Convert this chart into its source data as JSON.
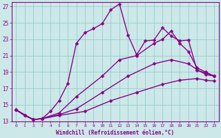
{
  "xlabel": "Windchill (Refroidissement éolien,°C)",
  "bg_color": "#cce8e8",
  "line_color": "#880088",
  "grid_color": "#99cccc",
  "xmin": -0.5,
  "xmax": 23.5,
  "ymin": 13,
  "ymax": 27.5,
  "yticks": [
    13,
    15,
    17,
    19,
    21,
    23,
    25,
    27
  ],
  "xticks": [
    0,
    1,
    2,
    3,
    4,
    5,
    6,
    7,
    8,
    9,
    10,
    11,
    12,
    13,
    14,
    15,
    16,
    17,
    18,
    19,
    20,
    21,
    22,
    23
  ],
  "series": [
    {
      "x": [
        0,
        1,
        2,
        3,
        4,
        5,
        6,
        7,
        8,
        9,
        10,
        11,
        12,
        13,
        14,
        15,
        16,
        17,
        18,
        19,
        20,
        21,
        22,
        23
      ],
      "y": [
        14.4,
        13.7,
        13.2,
        13.3,
        14.2,
        15.5,
        17.6,
        22.5,
        23.8,
        24.3,
        24.9,
        26.6,
        27.3,
        23.5,
        21.1,
        22.8,
        22.9,
        24.4,
        23.4,
        22.8,
        22.9,
        19.2,
        18.9,
        18.5
      ]
    },
    {
      "x": [
        0,
        2,
        3,
        5,
        7,
        10,
        12,
        14,
        16,
        17,
        18,
        19,
        20,
        21,
        22,
        23
      ],
      "y": [
        14.4,
        13.2,
        13.3,
        14.0,
        16.0,
        18.5,
        20.5,
        21.0,
        22.5,
        23.0,
        24.0,
        22.5,
        21.5,
        19.5,
        19.0,
        18.5
      ]
    },
    {
      "x": [
        0,
        1,
        2,
        3,
        5,
        7,
        10,
        13,
        16,
        18,
        20,
        21,
        22,
        23
      ],
      "y": [
        14.4,
        13.7,
        13.2,
        13.3,
        13.8,
        14.5,
        16.5,
        18.5,
        20.0,
        20.5,
        20.0,
        19.3,
        18.7,
        18.5
      ]
    },
    {
      "x": [
        0,
        1,
        2,
        3,
        5,
        8,
        11,
        14,
        17,
        19,
        21,
        22,
        23
      ],
      "y": [
        14.4,
        13.7,
        13.2,
        13.3,
        13.7,
        14.2,
        15.5,
        16.5,
        17.5,
        18.0,
        18.2,
        18.0,
        17.9
      ]
    }
  ],
  "marker": "D",
  "markersize": 2.5,
  "linewidth": 1.0
}
